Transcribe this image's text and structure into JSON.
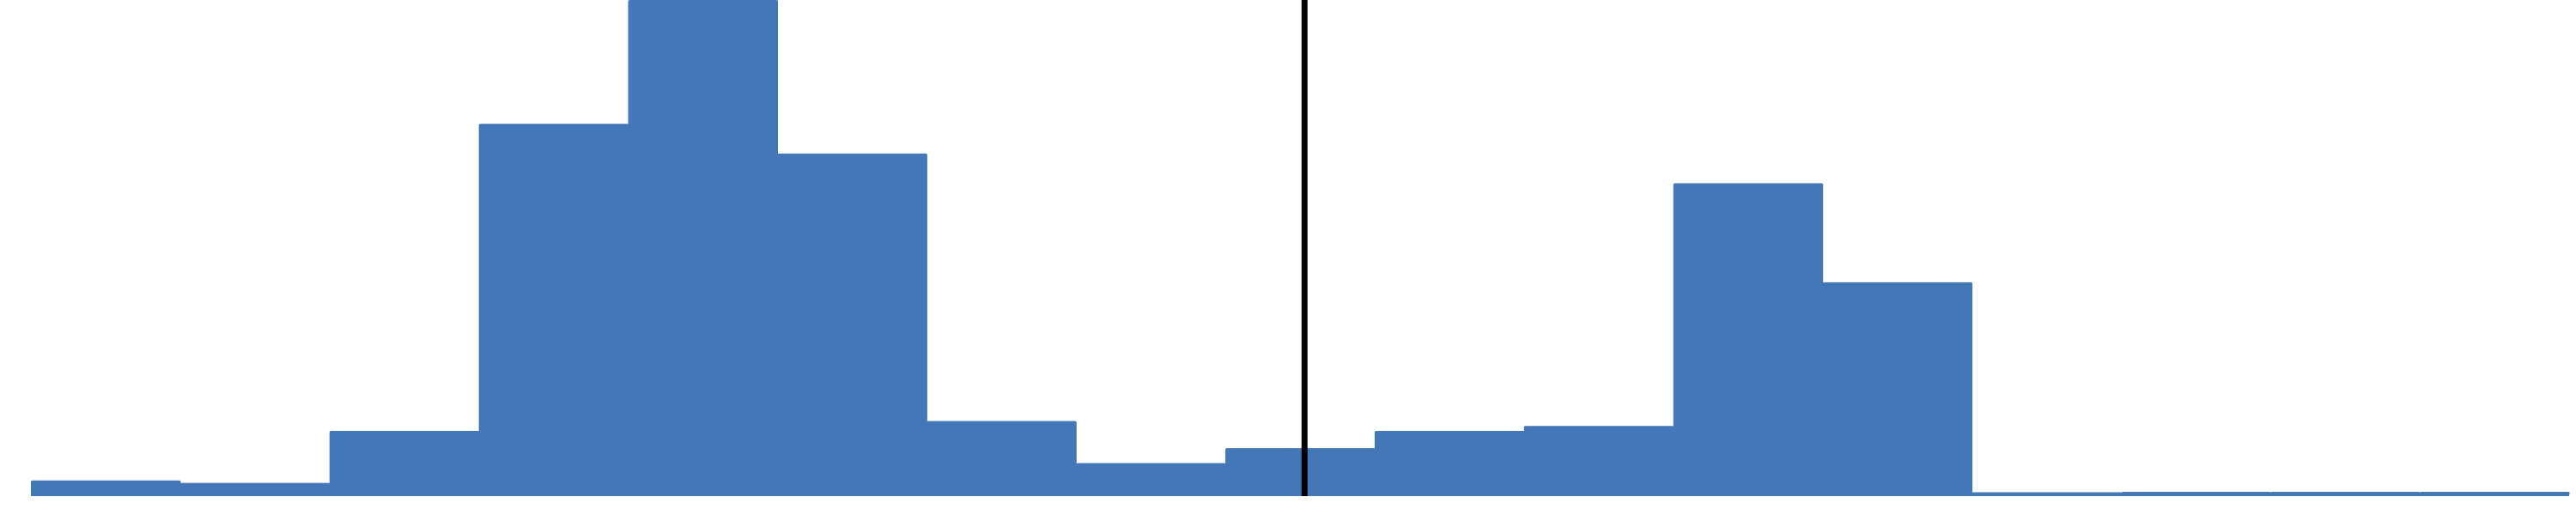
{
  "chart_data": {
    "type": "bar",
    "title": "",
    "xlabel": "",
    "ylabel": "",
    "bar_color": "#4377B8",
    "reference_line_color": "#000000",
    "reference_line_after_bar_index": 8,
    "reference_line_fraction_within_bar": 0.53,
    "ylim": [
      0,
      100
    ],
    "values": [
      3.0,
      2.5,
      13.0,
      75.0,
      100.0,
      69.0,
      15.0,
      6.5,
      9.5,
      13.0,
      14.0,
      63.0,
      43.0,
      0.6,
      0.7,
      0.7,
      0.7
    ],
    "grid": false,
    "legend": false
  }
}
